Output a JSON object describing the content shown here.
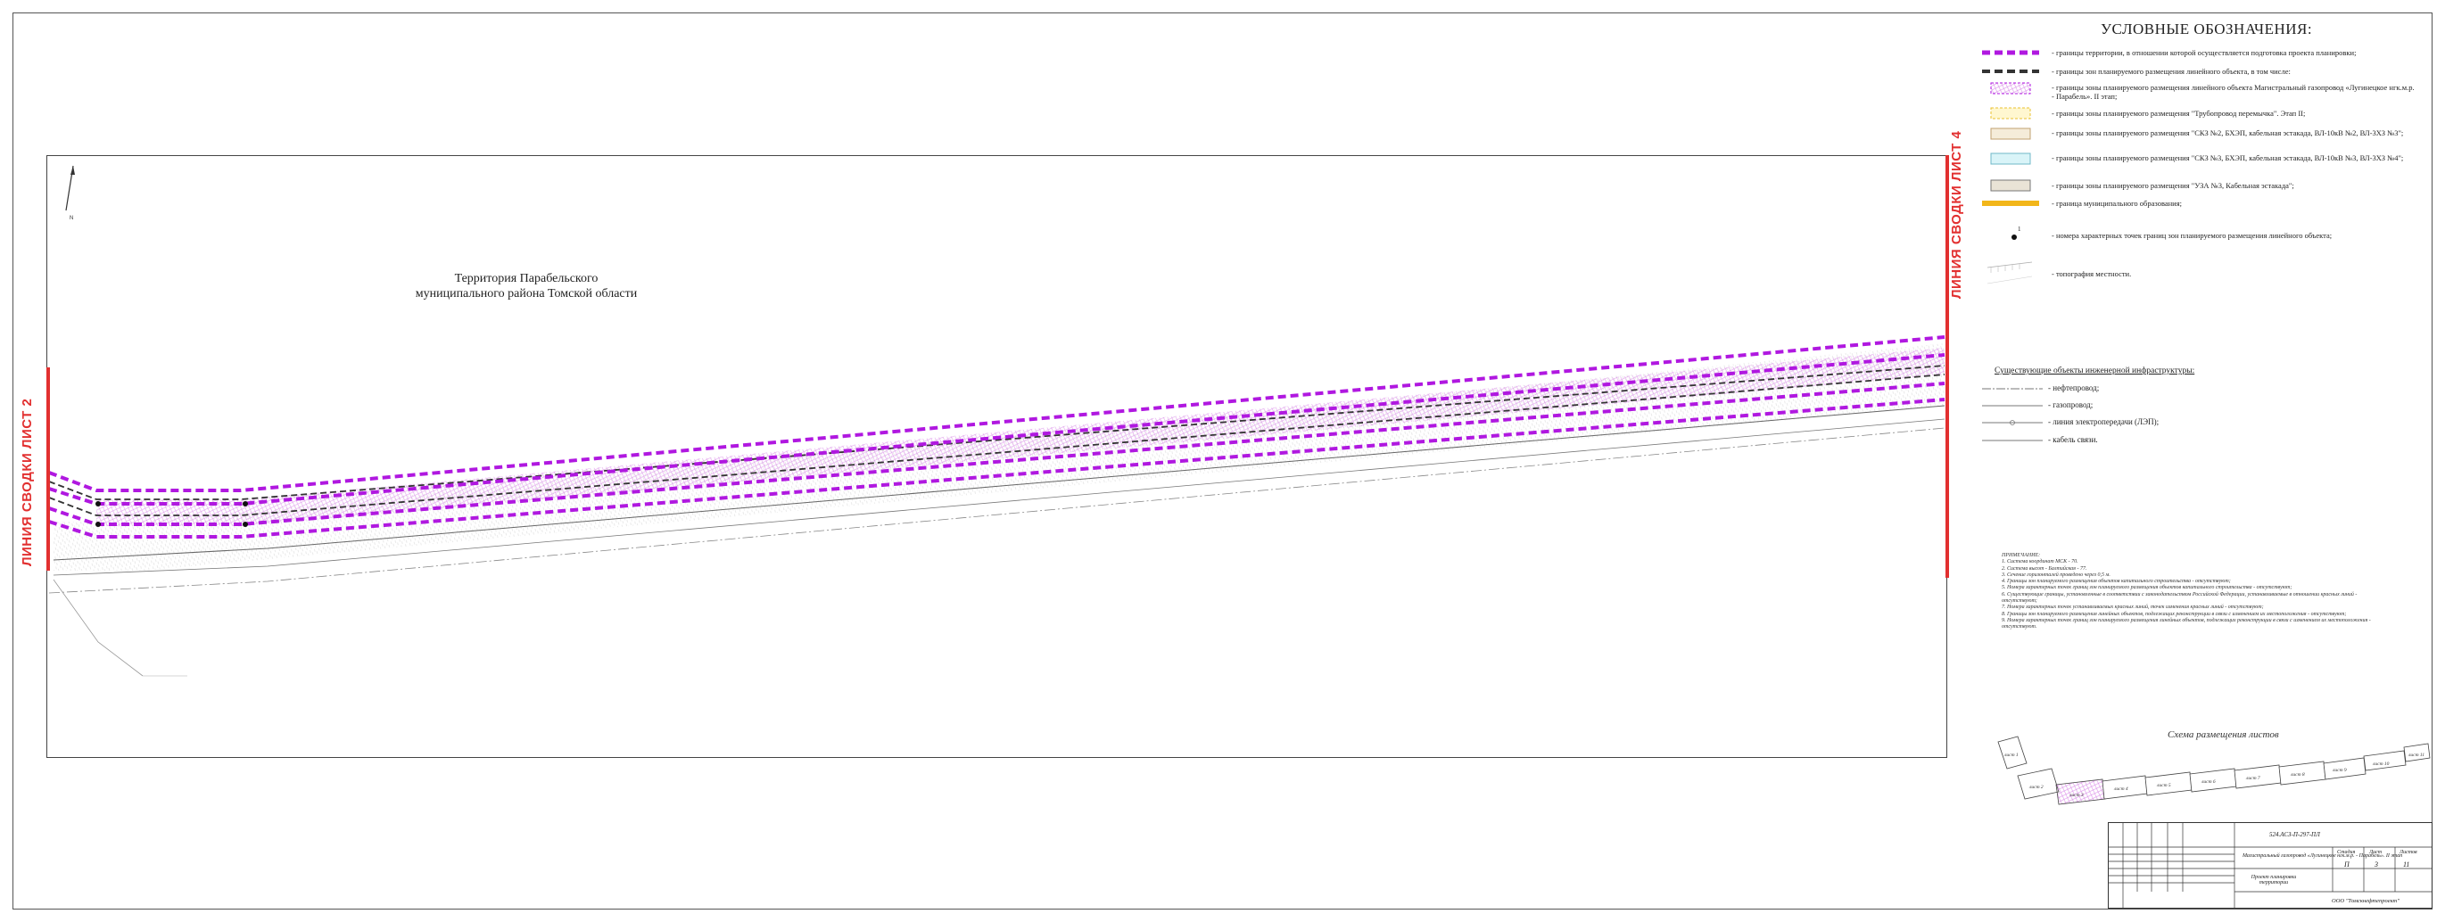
{
  "map": {
    "territory_line1": "Территория Парабельского",
    "territory_line2": "муниципального района Томской области",
    "match_line_left": "ЛИНИЯ СВОДКИ ЛИСТ 2",
    "match_line_right": "ЛИНИЯ СВОДКИ ЛИСТ 4"
  },
  "colors": {
    "planning_boundary": "#b018e0",
    "zone_boundary": "#333333",
    "hatch": "#d98ce8",
    "match_line": "#e23030",
    "municipal": "#f2b61a"
  },
  "legend": {
    "title": "УСЛОВНЫЕ ОБОЗНАЧЕНИЯ:",
    "items": [
      {
        "symbol": "dashed-purple-line",
        "text": "- границы территории, в отношении которой осуществляется подготовка  проекта планировки;"
      },
      {
        "symbol": "dashed-black-line",
        "text": "- границы зон планируемого размещения линейного объекта, в том числе:"
      },
      {
        "symbol": "pink-hatch-box",
        "text": "- границы зоны планируемого размещения линейного объекта Магистральный газопровод «Лугинецкое нгк.м.р. - Парабель». II этап;"
      },
      {
        "symbol": "yellow-box",
        "text": "- границы зоны планируемого размещения \"Трубопровод перемычка\". Этап II;"
      },
      {
        "symbol": "beige-box",
        "text": "- границы  зоны  планируемого  размещения  \"СКЗ  №2,  БХЭП,  кабельная  эстакада,  ВЛ-10кВ №2, ВЛ-3ХЗ №3\";"
      },
      {
        "symbol": "cyan-box",
        "text": "- границы  зоны  планируемого  размещения  \"СКЗ  №3,  БХЭП,  кабельная  эстакада,  ВЛ-10кВ №3, ВЛ-3ХЗ №4\";"
      },
      {
        "symbol": "grey-box",
        "text": "- границы зоны планируемого размещения \"УЗА №3, Кабельная эстакада\";"
      },
      {
        "symbol": "orange-line",
        "text": "- граница муниципального образования;"
      },
      {
        "symbol": "point-marker",
        "text": "- номера характерных точек границ зон планируемого размещения линейного объекта;"
      },
      {
        "symbol": "topo-hatch",
        "text": "- топография местности."
      }
    ]
  },
  "infra": {
    "title": "Существующие объекты инженерной инфраструктуры:",
    "items": [
      {
        "text": "- нефтепровод;"
      },
      {
        "text": "- газопровод;"
      },
      {
        "text": "- линия электропередачи (ЛЭП);"
      },
      {
        "text": "- кабель связи."
      }
    ]
  },
  "notes": {
    "lines": [
      "ПРИМЕЧАНИЕ:",
      "1. Система координат МСК - 70.",
      "2. Система высот - Балтийская - 77.",
      "3. Сечение горизонталей проведено через 0,5 м.",
      "4. Границы зон планируемого размещения объектов капитального строительства - отсутствуют;",
      "5. Номера характерных точек границ зон планируемого размещения объектов капитального строительства - отсутствуют;",
      "6. Существующие границы, установленные в соответствии с законодательством Российской Федерации, устанавливаемые в отношении красных линий - отсутствуют;",
      "7. Номера характерных точек устанавливаемых красных линий, точек изменения красных линий - отсутствуют;",
      "8. Границы зон планируемого размещения линейных объектов, подлежащих реконструкции в связи с изменением их местоположения - отсутствуют;",
      "9. Номера характерных точек границ зон планируемого размещения линейных объектов, подлежащих реконструкции в связи с изменением их местоположения - отсутствуют."
    ]
  },
  "scheme": {
    "title": "Схема размещения листов",
    "sheets": [
      "лист 1",
      "лист 2",
      "лист 3",
      "лист 4",
      "лист 5",
      "лист 6",
      "лист 7",
      "лист 8",
      "лист 9",
      "лист 10",
      "лист 11"
    ]
  },
  "stamp": {
    "code": "524.АСЗ-П-297-ПЛ",
    "project_name": "Магистральный газопровод «Лугинецкое нгк.м.р. - Парабель». II этап",
    "sheet_name": "Проект планировки территории",
    "stage_label": "Стадия",
    "sheet_label": "Лист",
    "sheets_label": "Листов",
    "stage": "П",
    "sheet_no": "3",
    "sheets_total": "11",
    "organization": "ООО \"Томскнефтепроект\""
  }
}
